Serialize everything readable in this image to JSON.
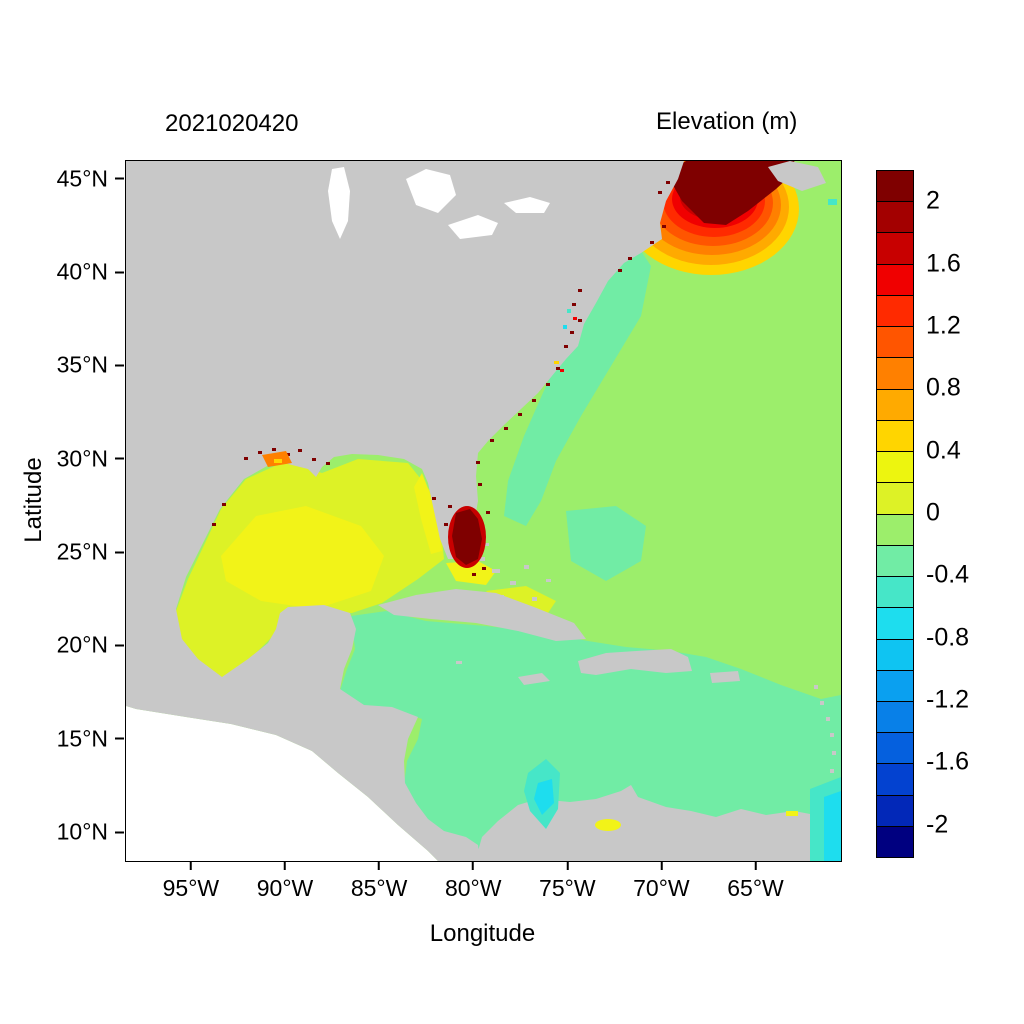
{
  "chart_data": {
    "type": "heatmap",
    "title": "2021020420",
    "colorbar_title": "Elevation (m)",
    "xlabel": "Longitude",
    "ylabel": "Latitude",
    "x_ticks": [
      "95°W",
      "90°W",
      "85°W",
      "80°W",
      "75°W",
      "70°W",
      "65°W"
    ],
    "y_ticks": [
      "45°N",
      "40°N",
      "35°N",
      "30°N",
      "25°N",
      "20°N",
      "15°N",
      "10°N"
    ],
    "x_range_approx": "98.5°W to 60.5°W",
    "y_range_approx": "8.5°N to 46°N",
    "grid": false,
    "colorbar": {
      "position": "right",
      "min": -2.2,
      "max": 2.2,
      "step": 0.2,
      "tick_labels": [
        "2",
        "1.6",
        "1.2",
        "0.8",
        "0.4",
        "0",
        "-0.4",
        "-0.8",
        "-1.2",
        "-1.6",
        "-2"
      ],
      "colors_top_to_bottom": [
        "#7F0000",
        "#A30000",
        "#C80000",
        "#F00000",
        "#FF2A00",
        "#FF5500",
        "#FF8000",
        "#FFAA00",
        "#FFD500",
        "#EDF50F",
        "#DDF226",
        "#9CEE6B",
        "#71ECA5",
        "#46E6C8",
        "#1EDDEE",
        "#0FC4F2",
        "#0AA0F0",
        "#0880E8",
        "#0560DE",
        "#0342D0",
        "#0228B8",
        "#000080"
      ]
    },
    "regions": [
      {
        "name": "Gulf of Maine / Bay of Fundy surge maximum",
        "approx_location": "68°W 43.5°N",
        "elevation_m": "> 2"
      },
      {
        "name": "Concentric contour rings south of surge maximum",
        "approx_location": "70°W 42°N",
        "elevation_m": "0.4 to 2"
      },
      {
        "name": "South Florida / Lake Okeechobee hotspot",
        "approx_location": "80.8°W 26.8°N",
        "elevation_m": "> 2"
      },
      {
        "name": "Gulf of Mexico basin",
        "approx_location": "90°W 25°N",
        "elevation_m": "0.2 to 0.4"
      },
      {
        "name": "Western Gulf of Mexico center",
        "approx_location": "93°W 25°N",
        "elevation_m": "~0.4"
      },
      {
        "name": "Open Atlantic",
        "approx_location": "70°W 30°N",
        "elevation_m": "0 to 0.2"
      },
      {
        "name": "Offshore band along US east coast",
        "approx_location": "76°W 33°N",
        "elevation_m": "-0.2 to 0"
      },
      {
        "name": "Caribbean Sea",
        "approx_location": "75°W 15°N",
        "elevation_m": "-0.2 to 0"
      },
      {
        "name": "Patch off Colombia coast",
        "approx_location": "76°W 10°N",
        "elevation_m": "-0.4 to -0.6"
      },
      {
        "name": "Southeast corner near 61°W",
        "approx_location": "61°W 12°N",
        "elevation_m": "-0.4 to -0.8"
      },
      {
        "name": "Coastal marsh speckles (Gulf and Atlantic coasts)",
        "approx_location": "various coastlines",
        "elevation_m": "> 2"
      }
    ]
  },
  "colors": {
    "land": "#C8C8C8",
    "background": "#FFFFFF",
    "ocean": "#9CEE6B",
    "mint": "#71ECA5",
    "gulf": "#DDF226",
    "gulf_yellow": "#F2F318",
    "surge": "#7F0000",
    "ring_darkred2": "#C80000",
    "ring_red": "#F00000",
    "ring_red2": "#FF2A00",
    "ring_redorange": "#FF5500",
    "ring_orange": "#FF8000",
    "ring_orange2": "#FFAA00",
    "ring_yellow": "#FFD500",
    "teal": "#46E6C8",
    "cyan": "#1EDDEE"
  }
}
